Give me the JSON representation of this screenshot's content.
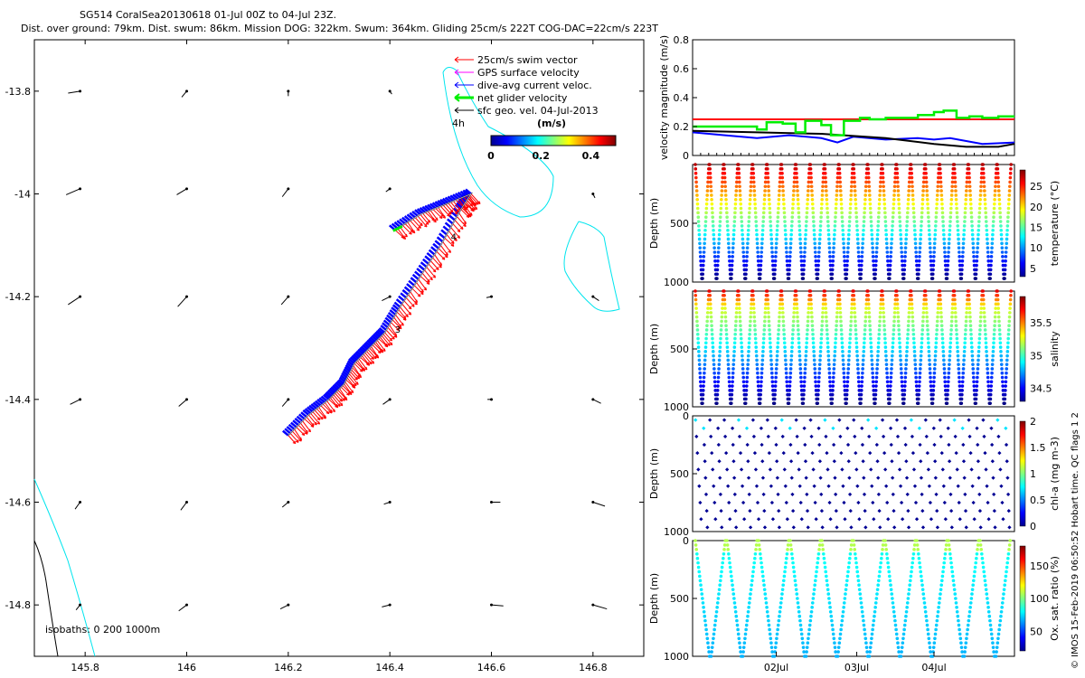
{
  "title_line1": "SG514 CoralSea20130618 01-Jul 00Z to 04-Jul 23Z.",
  "title_line2": "Dist. over ground: 79km. Dist. swum: 86km. Mission DOG: 322km. Swum: 364km. Gliding 25cm/s 222T COG-DAC=22cm/s 223T",
  "watermark": "© IMOS 15-Feb-2019 06:50:52 Hobart time. QC flags 1 2",
  "colors": {
    "swim": "#ff0000",
    "gps": "#ff00ff",
    "dac": "#0000ff",
    "net": "#00ee00",
    "geo": "#000000",
    "isobath200": "#00e5ee",
    "isobath1000": "#000000"
  },
  "chart_data": [
    {
      "type": "map",
      "xlim": [
        145.7,
        146.9
      ],
      "ylim": [
        -14.9,
        -13.7
      ],
      "xticks": [
        "145.8",
        "146",
        "146.2",
        "146.4",
        "146.6",
        "146.8"
      ],
      "yticks": [
        "-13.8",
        "-14",
        "-14.2",
        "-14.4",
        "-14.6",
        "-14.8"
      ],
      "legend": [
        "25cm/s swim vector",
        "GPS surface velocity",
        "dive-avg current veloc.",
        "net glider velocity",
        "sfc geo. vel. 04-Jul-2013"
      ],
      "legend_note": "4h",
      "colorbar": {
        "label": "(m/s)",
        "ticks": [
          "0",
          "0.2",
          "0.4"
        ],
        "range": [
          0,
          0.5
        ]
      },
      "isobath_note": "isobaths: 0   200  1000m",
      "day_labels": [
        {
          "text": "3",
          "lon": 146.41,
          "lat": -14.27
        },
        {
          "text": "4",
          "lon": 146.52,
          "lat": -14.09
        }
      ],
      "track": [
        [
          146.2,
          -14.47
        ],
        [
          146.24,
          -14.43
        ],
        [
          146.28,
          -14.4
        ],
        [
          146.31,
          -14.37
        ],
        [
          146.33,
          -14.33
        ],
        [
          146.36,
          -14.3
        ],
        [
          146.39,
          -14.27
        ],
        [
          146.42,
          -14.22
        ],
        [
          146.46,
          -14.16
        ],
        [
          146.5,
          -14.1
        ],
        [
          146.54,
          -14.03
        ],
        [
          146.56,
          -14.0
        ],
        [
          146.51,
          -14.02
        ],
        [
          146.46,
          -14.04
        ],
        [
          146.41,
          -14.07
        ]
      ],
      "geo_vectors": [
        {
          "lon": 145.79,
          "lat": -13.8,
          "u": 0.12,
          "v": -0.02
        },
        {
          "lon": 146.0,
          "lat": -13.8,
          "u": 0.05,
          "v": -0.06
        },
        {
          "lon": 146.2,
          "lat": -13.8,
          "u": 0.0,
          "v": -0.05
        },
        {
          "lon": 146.4,
          "lat": -13.8,
          "u": -0.02,
          "v": -0.03
        },
        {
          "lon": 145.79,
          "lat": -13.99,
          "u": 0.14,
          "v": -0.06
        },
        {
          "lon": 146.0,
          "lat": -13.99,
          "u": 0.1,
          "v": -0.06
        },
        {
          "lon": 146.2,
          "lat": -13.99,
          "u": 0.06,
          "v": -0.08
        },
        {
          "lon": 146.4,
          "lat": -13.99,
          "u": 0.04,
          "v": -0.03
        },
        {
          "lon": 146.8,
          "lat": -14.0,
          "u": -0.02,
          "v": -0.04
        },
        {
          "lon": 145.79,
          "lat": -14.2,
          "u": 0.12,
          "v": -0.08
        },
        {
          "lon": 146.0,
          "lat": -14.2,
          "u": 0.09,
          "v": -0.1
        },
        {
          "lon": 146.2,
          "lat": -14.2,
          "u": 0.07,
          "v": -0.08
        },
        {
          "lon": 146.4,
          "lat": -14.2,
          "u": 0.08,
          "v": -0.04
        },
        {
          "lon": 146.6,
          "lat": -14.2,
          "u": 0.05,
          "v": -0.01
        },
        {
          "lon": 146.8,
          "lat": -14.2,
          "u": -0.06,
          "v": -0.04
        },
        {
          "lon": 145.79,
          "lat": -14.4,
          "u": 0.1,
          "v": -0.05
        },
        {
          "lon": 146.0,
          "lat": -14.4,
          "u": 0.08,
          "v": -0.07
        },
        {
          "lon": 146.2,
          "lat": -14.4,
          "u": 0.06,
          "v": -0.07
        },
        {
          "lon": 146.4,
          "lat": -14.4,
          "u": 0.07,
          "v": -0.05
        },
        {
          "lon": 146.6,
          "lat": -14.4,
          "u": 0.04,
          "v": 0.0
        },
        {
          "lon": 146.8,
          "lat": -14.4,
          "u": -0.08,
          "v": -0.04
        },
        {
          "lon": 145.79,
          "lat": -14.6,
          "u": 0.05,
          "v": -0.07
        },
        {
          "lon": 146.0,
          "lat": -14.6,
          "u": 0.06,
          "v": -0.08
        },
        {
          "lon": 146.2,
          "lat": -14.6,
          "u": 0.06,
          "v": -0.05
        },
        {
          "lon": 146.4,
          "lat": -14.6,
          "u": 0.06,
          "v": -0.02
        },
        {
          "lon": 146.6,
          "lat": -14.6,
          "u": -0.09,
          "v": 0.0
        },
        {
          "lon": 146.8,
          "lat": -14.6,
          "u": -0.12,
          "v": -0.04
        },
        {
          "lon": 145.79,
          "lat": -14.8,
          "u": 0.04,
          "v": -0.05
        },
        {
          "lon": 146.0,
          "lat": -14.8,
          "u": 0.08,
          "v": -0.06
        },
        {
          "lon": 146.2,
          "lat": -14.8,
          "u": 0.08,
          "v": -0.04
        },
        {
          "lon": 146.4,
          "lat": -14.8,
          "u": 0.08,
          "v": -0.02
        },
        {
          "lon": 146.6,
          "lat": -14.8,
          "u": -0.12,
          "v": -0.01
        },
        {
          "lon": 146.8,
          "lat": -14.8,
          "u": -0.14,
          "v": -0.04
        }
      ]
    },
    {
      "type": "line",
      "ylabel": "velocity magnitude (m/s)",
      "ylim": [
        0,
        0.8
      ],
      "yticks": [
        "0",
        "0.2",
        "0.4",
        "0.6",
        "0.8"
      ],
      "series": [
        {
          "name": "25cm/s swim vector",
          "color": "#ff0000",
          "t": [
            0,
            1
          ],
          "v": [
            0.25,
            0.25
          ]
        },
        {
          "name": "dive-avg current veloc.",
          "color": "#0000ff",
          "t": [
            0,
            0.1,
            0.2,
            0.3,
            0.4,
            0.45,
            0.5,
            0.6,
            0.7,
            0.75,
            0.8,
            0.9,
            1.0
          ],
          "v": [
            0.16,
            0.14,
            0.12,
            0.14,
            0.12,
            0.09,
            0.13,
            0.11,
            0.12,
            0.11,
            0.12,
            0.08,
            0.09
          ]
        },
        {
          "name": "sfc geo. vel. 04-Jul-2013",
          "color": "#000000",
          "t": [
            0,
            0.2,
            0.4,
            0.6,
            0.75,
            0.85,
            0.95,
            1.0
          ],
          "v": [
            0.17,
            0.16,
            0.15,
            0.12,
            0.08,
            0.06,
            0.06,
            0.08
          ]
        },
        {
          "name": "net glider velocity",
          "color": "#00ee00",
          "t": [
            0,
            0.2,
            0.23,
            0.28,
            0.32,
            0.35,
            0.4,
            0.43,
            0.47,
            0.52,
            0.55,
            0.6,
            0.65,
            0.7,
            0.75,
            0.78,
            0.82,
            0.86,
            0.9,
            0.95,
            1.0
          ],
          "v": [
            0.2,
            0.18,
            0.23,
            0.22,
            0.16,
            0.24,
            0.21,
            0.14,
            0.24,
            0.26,
            0.25,
            0.26,
            0.26,
            0.28,
            0.3,
            0.31,
            0.26,
            0.27,
            0.26,
            0.27,
            0.27
          ]
        }
      ]
    },
    {
      "type": "scatter",
      "ylabel": "Depth (m)",
      "yticks": [
        "500",
        "1000"
      ],
      "clabel": "temperature (°C)",
      "cticks": [
        "5",
        "10",
        "15",
        "20",
        "25"
      ],
      "crange": [
        3,
        29
      ],
      "ylim": [
        0,
        1000
      ],
      "dives": 22,
      "maxdepth": 1000
    },
    {
      "type": "scatter",
      "ylabel": "Depth (m)",
      "yticks": [
        "500",
        "1000"
      ],
      "clabel": "salinity",
      "cticks": [
        "34.5",
        "35",
        "35.5"
      ],
      "crange": [
        34.3,
        35.9
      ],
      "ylim": [
        0,
        1000
      ],
      "dives": 22,
      "maxdepth": 1000
    },
    {
      "type": "scatter",
      "ylabel": "Depth (m)",
      "yticks": [
        "0",
        "500",
        "1000"
      ],
      "clabel": "chl-a (mg m-3)",
      "cticks": [
        "0",
        "0.5",
        "1",
        "1.5",
        "2"
      ],
      "crange": [
        0,
        2
      ],
      "ylim": [
        0,
        1000
      ],
      "dives": 22,
      "maxdepth": 1000
    },
    {
      "type": "scatter",
      "ylabel": "Depth (m)",
      "yticks": [
        "0",
        "500",
        "1000"
      ],
      "clabel": "Ox. sat. ratio (%)",
      "cticks": [
        "50",
        "100",
        "150"
      ],
      "crange": [
        20,
        180
      ],
      "ylim": [
        0,
        1000
      ],
      "xticks": [
        "02Jul",
        "03Jul",
        "04Jul"
      ],
      "dives": 10,
      "maxdepth": 1000
    }
  ]
}
